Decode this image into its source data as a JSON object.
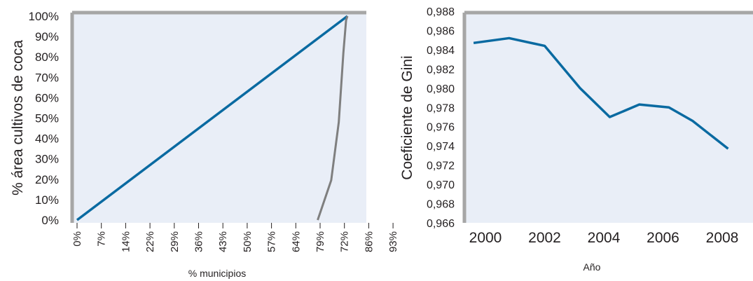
{
  "colors": {
    "plot_bg": "#e9eef7",
    "frame": "#a6a6a6",
    "blue_line": "#0a6aa1",
    "gray_line": "#7f7f7f",
    "text": "#231f20"
  },
  "chart_data": [
    {
      "type": "line",
      "title": "",
      "xlabel": "% municipios",
      "ylabel": "% área cultivos de coca",
      "x_tick_labels": [
        "0%",
        "7%",
        "14%",
        "22%",
        "29%",
        "36%",
        "43%",
        "50%",
        "57%",
        "64%",
        "79%",
        "72%",
        "86%",
        "93%"
      ],
      "y_tick_labels": [
        "0%",
        "10%",
        "20%",
        "30%",
        "40%",
        "50%",
        "60%",
        "70%",
        "80%",
        "90%",
        "100%"
      ],
      "xlim": [
        0,
        100
      ],
      "ylim": [
        0,
        100
      ],
      "grid": false,
      "series": [
        {
          "x": [
            0,
            100
          ],
          "y": [
            0,
            100
          ]
        },
        {
          "x": [
            89,
            94,
            96.8,
            98.5,
            99.5,
            100
          ],
          "y": [
            0,
            19.5,
            48,
            82,
            98,
            100
          ]
        }
      ]
    },
    {
      "type": "line",
      "title": "",
      "xlabel": "Año",
      "ylabel": "Coeficiente de Gini",
      "x_tick_labels": [
        "2000",
        "2002",
        "2004",
        "2006",
        "2008"
      ],
      "x_tick_values": [
        2000,
        2002,
        2004,
        2006,
        2008
      ],
      "y_tick_labels": [
        "0,966",
        "0,968",
        "0,970",
        "0,972",
        "0,974",
        "0,976",
        "0,978",
        "0,980",
        "0,982",
        "0,984",
        "0,986",
        "0,988"
      ],
      "y_tick_values": [
        0.966,
        0.968,
        0.97,
        0.972,
        0.974,
        0.976,
        0.978,
        0.98,
        0.982,
        0.984,
        0.986,
        0.988
      ],
      "xlim": [
        1999.3,
        2009.5
      ],
      "ylim": [
        0.966,
        0.988
      ],
      "grid": false,
      "series": [
        {
          "x": [
            1999.6,
            2000.8,
            2002.0,
            2003.2,
            2004.2,
            2005.2,
            2006.2,
            2007.0,
            2008.2
          ],
          "y": [
            0.9847,
            0.9852,
            0.9844,
            0.98,
            0.977,
            0.9783,
            0.978,
            0.9766,
            0.9737
          ]
        }
      ]
    }
  ]
}
